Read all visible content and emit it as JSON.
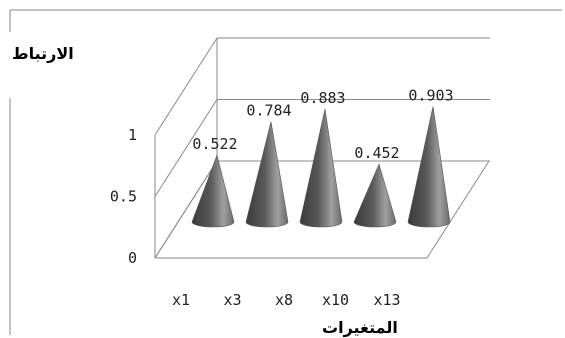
{
  "chart_data": {
    "type": "bar",
    "style": "3d-cone",
    "categories": [
      "x1",
      "x3",
      "x8",
      "x10",
      "x13"
    ],
    "values": [
      0.522,
      0.784,
      0.883,
      0.452,
      0.903
    ],
    "data_labels": [
      "0.522",
      "0.784",
      "0.883",
      "0.452",
      "0.903"
    ],
    "title": "",
    "xlabel": "المتغيرات",
    "ylabel": "الارتباط",
    "ylim": [
      0,
      1
    ],
    "yticks": [
      "0",
      "0.5",
      "1"
    ],
    "grid": true,
    "legend": "none",
    "colors": {
      "cone_dark": "#3a3a3a",
      "cone_mid": "#7a7a7a",
      "cone_light": "#a8a8a8",
      "frame": "#8a8a8a"
    }
  }
}
